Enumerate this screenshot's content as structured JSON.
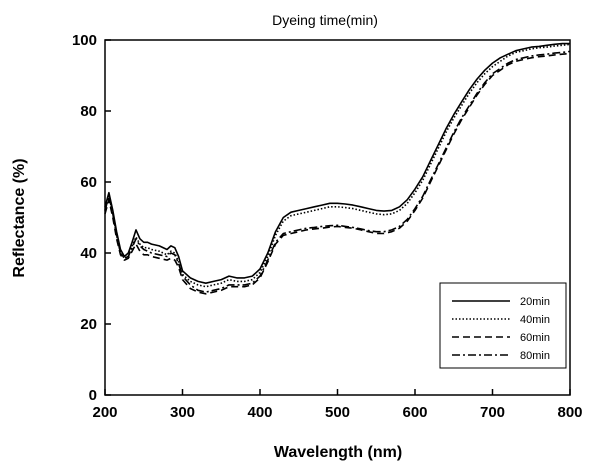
{
  "chart_data": {
    "type": "line",
    "title": "Dyeing time(min)",
    "xlabel": "Wavelength (nm)",
    "ylabel": "Reflectance (%)",
    "xlim": [
      200,
      800
    ],
    "ylim": [
      0,
      100
    ],
    "xticks": [
      "200",
      "300",
      "400",
      "500",
      "600",
      "700",
      "800"
    ],
    "yticks": [
      "0",
      "20",
      "40",
      "60",
      "80",
      "100"
    ],
    "grid": false,
    "legend_position": "bottom-right",
    "series": [
      {
        "name": "20min",
        "dash": "solid",
        "x": [
          200,
          205,
          210,
          215,
          220,
          225,
          230,
          235,
          240,
          245,
          250,
          255,
          260,
          270,
          280,
          285,
          290,
          295,
          300,
          310,
          320,
          330,
          340,
          350,
          360,
          370,
          380,
          390,
          400,
          410,
          420,
          430,
          440,
          450,
          460,
          470,
          480,
          490,
          500,
          510,
          520,
          530,
          540,
          550,
          560,
          570,
          580,
          590,
          600,
          610,
          620,
          630,
          640,
          650,
          660,
          670,
          680,
          690,
          700,
          710,
          720,
          730,
          740,
          750,
          760,
          770,
          780,
          790,
          800
        ],
        "y": [
          53,
          57,
          52,
          46,
          41,
          39,
          40,
          43,
          46.5,
          44,
          43,
          43,
          42.5,
          42,
          41,
          42,
          41.5,
          39,
          35,
          33,
          32,
          31.5,
          32,
          32.5,
          33.5,
          33,
          33,
          33.5,
          35.5,
          40,
          46,
          50,
          51.5,
          52,
          52.5,
          53,
          53.5,
          54,
          54,
          53.8,
          53.5,
          53,
          52.5,
          52,
          51.8,
          52,
          53,
          55,
          58,
          61.5,
          66,
          70.5,
          75,
          79,
          82.5,
          86,
          89,
          91.5,
          93.5,
          95,
          96,
          97,
          97.5,
          98,
          98.2,
          98.5,
          98.8,
          99,
          99
        ]
      },
      {
        "name": "40min",
        "dash": "dotted",
        "x": [
          200,
          205,
          210,
          215,
          220,
          225,
          230,
          235,
          240,
          245,
          250,
          255,
          260,
          270,
          280,
          285,
          290,
          295,
          300,
          310,
          320,
          330,
          340,
          350,
          360,
          370,
          380,
          390,
          400,
          410,
          420,
          430,
          440,
          450,
          460,
          470,
          480,
          490,
          500,
          510,
          520,
          530,
          540,
          550,
          560,
          570,
          580,
          590,
          600,
          610,
          620,
          630,
          640,
          650,
          660,
          670,
          680,
          690,
          700,
          710,
          720,
          730,
          740,
          750,
          760,
          770,
          780,
          790,
          800
        ],
        "y": [
          52,
          56,
          51,
          45,
          40,
          38.5,
          39,
          42,
          44.5,
          42.5,
          41.5,
          41.5,
          41,
          40.5,
          39.5,
          40.5,
          40,
          37.5,
          34,
          32,
          31,
          30.5,
          31,
          31.5,
          32.5,
          32,
          32,
          32.5,
          34.5,
          39,
          45,
          49,
          50.5,
          51,
          51.5,
          52,
          52.5,
          53,
          53,
          52.8,
          52.5,
          52,
          51.5,
          51,
          50.8,
          51,
          52,
          54,
          57,
          60.5,
          65,
          69.5,
          74,
          78,
          81.5,
          85,
          88,
          90.5,
          92.5,
          94,
          95.5,
          96.5,
          97,
          97.5,
          97.8,
          98,
          98.3,
          98.5,
          98.8
        ]
      },
      {
        "name": "60min",
        "dash": "dashed",
        "x": [
          200,
          205,
          210,
          215,
          220,
          225,
          230,
          235,
          240,
          245,
          250,
          255,
          260,
          270,
          280,
          285,
          290,
          295,
          300,
          310,
          320,
          330,
          340,
          350,
          360,
          370,
          380,
          390,
          400,
          410,
          420,
          430,
          440,
          450,
          460,
          470,
          480,
          490,
          500,
          510,
          520,
          530,
          540,
          550,
          560,
          570,
          580,
          590,
          600,
          610,
          620,
          630,
          640,
          650,
          660,
          670,
          680,
          690,
          700,
          710,
          720,
          730,
          740,
          750,
          760,
          770,
          780,
          790,
          800
        ],
        "y": [
          51,
          55,
          50,
          44,
          39.5,
          38,
          38.5,
          40.5,
          42.5,
          40.5,
          39.5,
          39.5,
          39,
          38.5,
          38,
          38.5,
          38,
          36,
          32.5,
          30,
          29,
          28.5,
          29,
          29.5,
          30.5,
          30.5,
          30.5,
          31,
          33,
          37.5,
          42.5,
          45,
          45.5,
          46,
          46.5,
          46.8,
          47,
          47.3,
          47.5,
          47.2,
          47,
          46.5,
          46,
          45.5,
          45.5,
          46,
          47,
          49,
          52,
          55.5,
          60,
          64.5,
          69,
          73.5,
          77.5,
          81,
          84.5,
          87.5,
          90,
          91.5,
          93,
          94,
          94.5,
          95,
          95.3,
          95.5,
          95.8,
          96,
          96.2
        ]
      },
      {
        "name": "80min",
        "dash": "dashdot",
        "x": [
          200,
          205,
          210,
          215,
          220,
          225,
          230,
          235,
          240,
          245,
          250,
          255,
          260,
          270,
          280,
          285,
          290,
          295,
          300,
          310,
          320,
          330,
          340,
          350,
          360,
          370,
          380,
          390,
          400,
          410,
          420,
          430,
          440,
          450,
          460,
          470,
          480,
          490,
          500,
          510,
          520,
          530,
          540,
          550,
          560,
          570,
          580,
          590,
          600,
          610,
          620,
          630,
          640,
          650,
          660,
          670,
          680,
          690,
          700,
          710,
          720,
          730,
          740,
          750,
          760,
          770,
          780,
          790,
          800
        ],
        "y": [
          52,
          56,
          51,
          45,
          40,
          38.5,
          39,
          41.5,
          44,
          42,
          41,
          40.5,
          40,
          39.5,
          39,
          40,
          39.5,
          37,
          33.5,
          31,
          29.5,
          29,
          29.5,
          30,
          31,
          31,
          31,
          31.5,
          33.5,
          38,
          43,
          45.5,
          46,
          46.5,
          47,
          47.2,
          47.5,
          47.7,
          47.8,
          47.5,
          47.2,
          46.8,
          46.3,
          46,
          46,
          46.5,
          47.5,
          49.5,
          52.5,
          56,
          60.5,
          65,
          69.5,
          74,
          78,
          81.5,
          85,
          88,
          90.5,
          92,
          93.5,
          94.5,
          95,
          95.5,
          95.8,
          96,
          96.3,
          96.5,
          96.8
        ]
      }
    ]
  }
}
